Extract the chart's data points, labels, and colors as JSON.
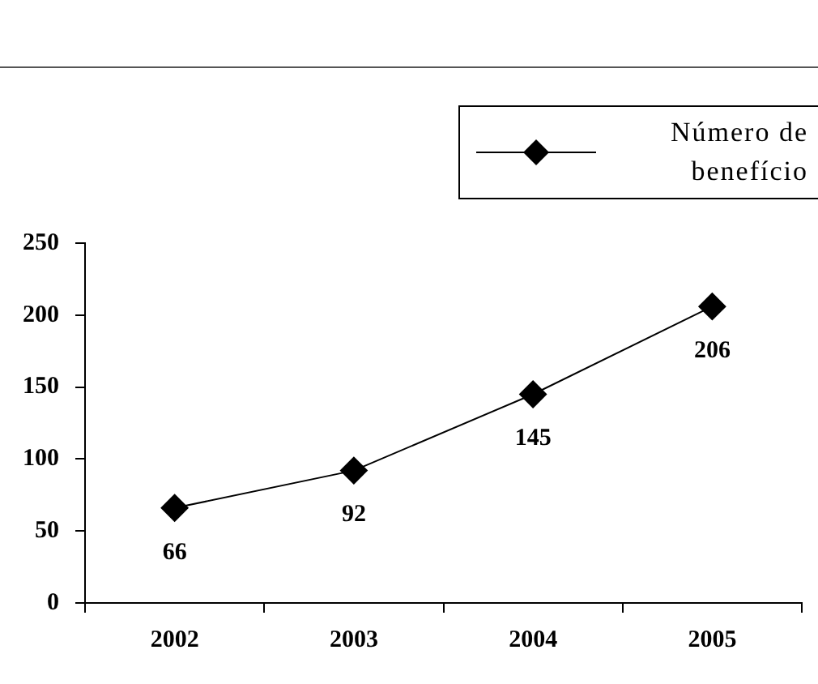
{
  "chart_data": {
    "type": "line",
    "categories": [
      "2002",
      "2003",
      "2004",
      "2005"
    ],
    "series": [
      {
        "name": "Número de benefício",
        "color": "#000000",
        "values": [
          66,
          92,
          145,
          206
        ]
      }
    ],
    "ylim": [
      0,
      250
    ],
    "yticks": [
      0,
      50,
      100,
      150,
      200,
      250
    ],
    "grid": false,
    "legend": "top right",
    "marker": "diamond",
    "line_style": "solid",
    "data_labels": true
  }
}
